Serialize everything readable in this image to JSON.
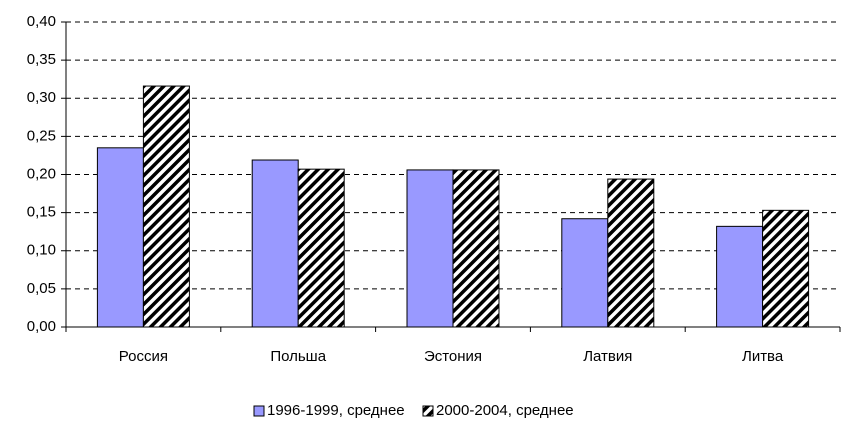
{
  "chart_data": {
    "type": "bar",
    "categories": [
      "Россия",
      "Польша",
      "Эстония",
      "Латвия",
      "Литва"
    ],
    "series": [
      {
        "name": "1996-1999, среднее",
        "color": "#9999ff",
        "values": [
          0.235,
          0.219,
          0.206,
          0.142,
          0.132
        ]
      },
      {
        "name": "2000-2004, среднее",
        "color": "#000000",
        "hatch": true,
        "values": [
          0.316,
          0.207,
          0.206,
          0.194,
          0.153
        ]
      }
    ],
    "ylim": [
      0,
      0.4
    ],
    "yticks": [
      {
        "value": 0,
        "label": "0,00"
      },
      {
        "value": 0.05,
        "label": "0,05"
      },
      {
        "value": 0.1,
        "label": "0,10"
      },
      {
        "value": 0.15,
        "label": "0,15"
      },
      {
        "value": 0.2,
        "label": "0,20"
      },
      {
        "value": 0.25,
        "label": "0,25"
      },
      {
        "value": 0.3,
        "label": "0,30"
      },
      {
        "value": 0.35,
        "label": "0,35"
      },
      {
        "value": 0.4,
        "label": "0,40"
      }
    ],
    "grid": true,
    "legend": "bottom"
  }
}
